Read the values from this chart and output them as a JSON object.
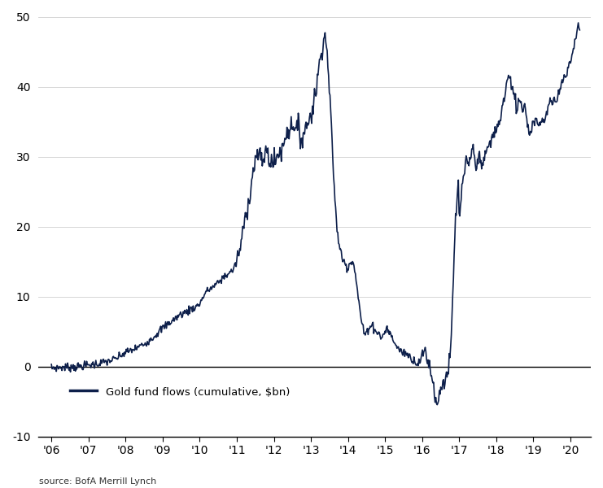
{
  "source_text": "source: BofA Merrill Lynch",
  "legend_label": "Gold fund flows (cumulative, $bn)",
  "line_color": "#0d1f4a",
  "background_color": "#ffffff",
  "ylim": [
    -10,
    50
  ],
  "yticks": [
    -10,
    0,
    10,
    20,
    30,
    40,
    50
  ],
  "x_tick_labels": [
    "'06",
    "'07",
    "'08",
    "'09",
    "'10",
    "'11",
    "'12",
    "'13",
    "'14",
    "'15",
    "'16",
    "'17",
    "'18",
    "'19",
    "'20"
  ],
  "x_tick_positions": [
    2006.0,
    2007.0,
    2008.0,
    2009.0,
    2010.0,
    2011.0,
    2012.0,
    2013.0,
    2014.0,
    2015.0,
    2016.0,
    2017.0,
    2018.0,
    2019.0,
    2020.0
  ],
  "xlim_left": 2005.65,
  "xlim_right": 2020.55,
  "line_width": 1.2
}
